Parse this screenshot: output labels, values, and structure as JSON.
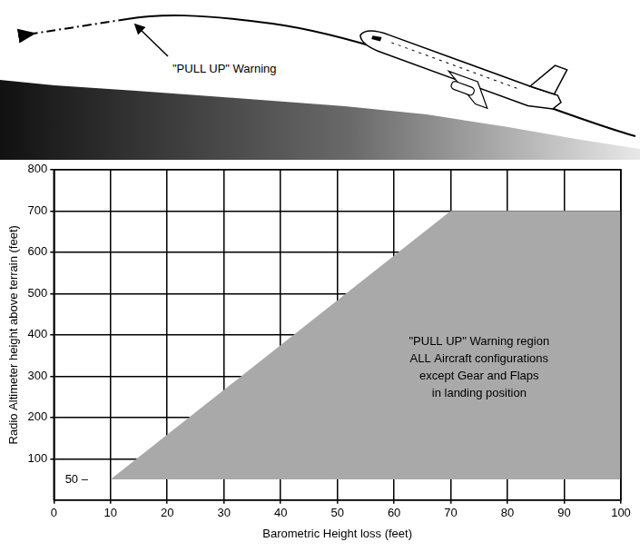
{
  "illustration": {
    "annotation": "\"PULL UP\" Warning"
  },
  "chart_data": {
    "type": "area",
    "x_label": "Barometric Height loss (feet)",
    "y_label": "Radio Altimeter height above terrain (feet)",
    "x": [
      10,
      70,
      100,
      100,
      10
    ],
    "values": [
      50,
      700,
      700,
      50,
      50
    ],
    "color": "#a9a9a9",
    "xlim": [
      0,
      100
    ],
    "xticks": [
      0,
      10,
      20,
      30,
      40,
      50,
      60,
      70,
      80,
      90,
      100
    ],
    "ylim": [
      0,
      800
    ],
    "yticks": [
      100,
      200,
      300,
      400,
      500,
      600,
      700,
      800
    ],
    "grid": true,
    "annotations": [
      {
        "text": [
          "\"PULL UP\" Warning region",
          "ALL Aircraft configurations",
          "except Gear and Flaps",
          "in landing position"
        ],
        "x": 75,
        "y": 320
      },
      {
        "text": [
          "50 –"
        ],
        "x": 4,
        "y": 50
      }
    ]
  }
}
